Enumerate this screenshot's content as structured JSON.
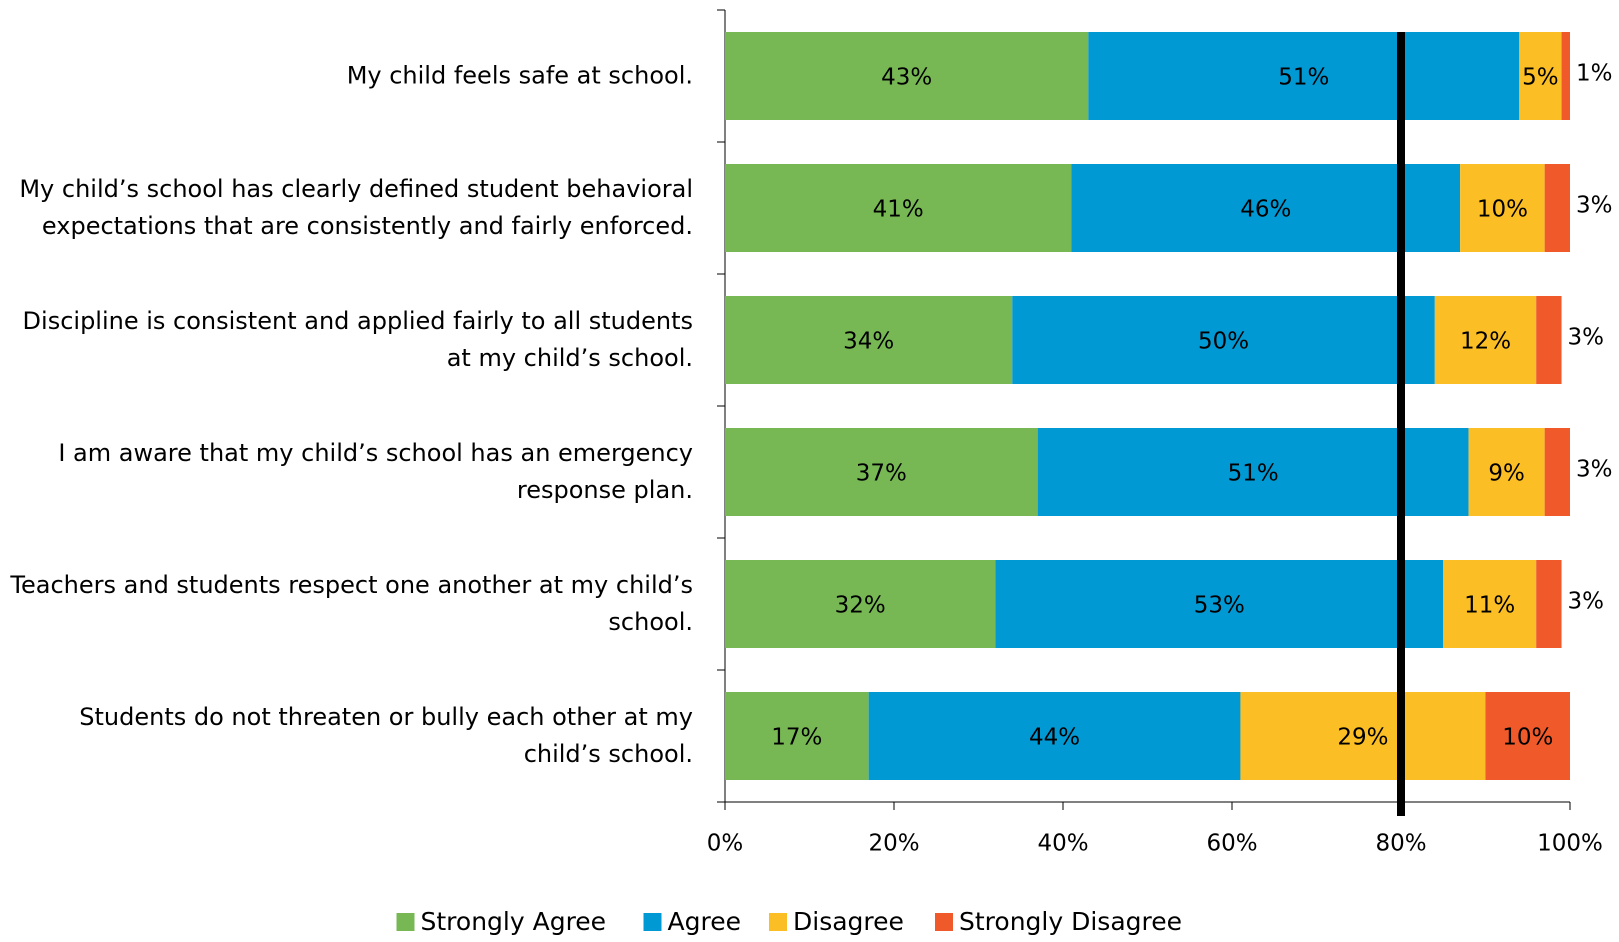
{
  "chart_data": {
    "type": "stacked_barh",
    "categories": [
      "My child feels safe at school.",
      "My child’s school has clearly defined student behavioral expectations that are consistently and fairly enforced.",
      "Discipline is consistent and applied fairly to all students at my child’s school.",
      "I am aware that my child’s school has an emergency response plan.",
      "Teachers and students respect one another at my child’s school.",
      "Students do not threaten or bully each other at my child’s school."
    ],
    "series": [
      {
        "name": "Strongly Agree",
        "color": "#77b855",
        "values": [
          43,
          41,
          34,
          37,
          32,
          17
        ],
        "value_labels": [
          "43%",
          "41%",
          "34%",
          "37%",
          "32%",
          "17%"
        ]
      },
      {
        "name": "Agree",
        "color": "#0099d4",
        "values": [
          51,
          46,
          50,
          51,
          53,
          44
        ],
        "value_labels": [
          "51%",
          "46%",
          "50%",
          "51%",
          "53%",
          "44%"
        ]
      },
      {
        "name": "Disagree",
        "color": "#fbbf25",
        "values": [
          5,
          10,
          12,
          9,
          11,
          29
        ],
        "value_labels": [
          "5%",
          "10%",
          "12%",
          "9%",
          "11%",
          "29%"
        ]
      },
      {
        "name": "Strongly Disagree",
        "color": "#f05a2a",
        "values": [
          1,
          3,
          3,
          3,
          3,
          10
        ],
        "value_labels": [
          "1%",
          "3%",
          "3%",
          "3%",
          "3%",
          "10%"
        ]
      }
    ],
    "xlim": [
      0,
      100
    ],
    "xticks": [
      {
        "value": 0,
        "label": "0%"
      },
      {
        "value": 20,
        "label": "20%"
      },
      {
        "value": 40,
        "label": "40%"
      },
      {
        "value": 60,
        "label": "60%"
      },
      {
        "value": 80,
        "label": "80%"
      },
      {
        "value": 100,
        "label": "100%"
      }
    ],
    "reference_line": {
      "value": 80,
      "color": "#000000"
    },
    "legend": "bottom"
  }
}
